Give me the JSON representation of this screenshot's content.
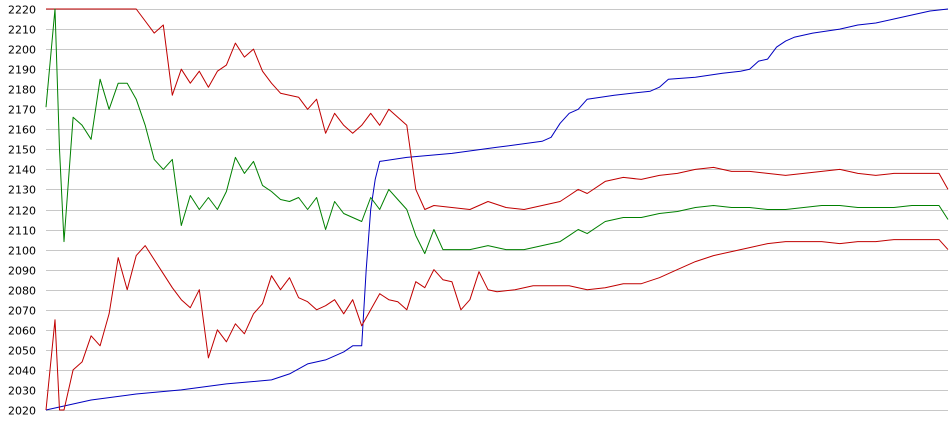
{
  "chart_data": {
    "type": "line",
    "ylim": [
      2020,
      2220
    ],
    "y_ticks": [
      2020,
      2030,
      2040,
      2050,
      2060,
      2070,
      2080,
      2090,
      2100,
      2110,
      2120,
      2130,
      2140,
      2150,
      2160,
      2170,
      2180,
      2190,
      2200,
      2210,
      2220
    ],
    "y_tick_labels": [
      "2020",
      "2030",
      "2040",
      "2050",
      "2060",
      "2070",
      "2080",
      "2090",
      "2100",
      "2110",
      "2120",
      "2130",
      "2140",
      "2150",
      "2160",
      "2170",
      "2180",
      "2190",
      "2200",
      "2210",
      "2220"
    ],
    "grid": true,
    "x_axis_labels": false,
    "xlim": [
      0,
      100
    ],
    "series": [
      {
        "color": "#0000c0",
        "points": [
          [
            0,
            2020
          ],
          [
            5,
            2025
          ],
          [
            10,
            2028
          ],
          [
            15,
            2030
          ],
          [
            20,
            2033
          ],
          [
            25,
            2035
          ],
          [
            27,
            2038
          ],
          [
            29,
            2043
          ],
          [
            31,
            2045
          ],
          [
            33,
            2049
          ],
          [
            34,
            2052
          ],
          [
            34.5,
            2052
          ],
          [
            35,
            2052
          ],
          [
            35.5,
            2090
          ],
          [
            36,
            2120
          ],
          [
            36.5,
            2135
          ],
          [
            37,
            2144
          ],
          [
            40,
            2146
          ],
          [
            45,
            2148
          ],
          [
            50,
            2151
          ],
          [
            55,
            2154
          ],
          [
            56,
            2156
          ],
          [
            57,
            2163
          ],
          [
            58,
            2168
          ],
          [
            59,
            2170
          ],
          [
            60,
            2175
          ],
          [
            63,
            2177
          ],
          [
            67,
            2179
          ],
          [
            68,
            2181
          ],
          [
            69,
            2185
          ],
          [
            72,
            2186
          ],
          [
            75,
            2188
          ],
          [
            77,
            2189
          ],
          [
            78,
            2190
          ],
          [
            79,
            2194
          ],
          [
            80,
            2195
          ],
          [
            81,
            2201
          ],
          [
            82,
            2204
          ],
          [
            83,
            2206
          ],
          [
            85,
            2208
          ],
          [
            88,
            2210
          ],
          [
            90,
            2212
          ],
          [
            92,
            2213
          ],
          [
            94,
            2215
          ],
          [
            96,
            2217
          ],
          [
            98,
            2219
          ],
          [
            100,
            2220
          ]
        ]
      },
      {
        "color": "#c00000",
        "points": [
          [
            0,
            2220
          ],
          [
            1,
            2220
          ],
          [
            3,
            2220
          ],
          [
            10,
            2220
          ],
          [
            11,
            2214
          ],
          [
            12,
            2208
          ],
          [
            13,
            2212
          ],
          [
            14,
            2177
          ],
          [
            15,
            2190
          ],
          [
            16,
            2183
          ],
          [
            17,
            2189
          ],
          [
            18,
            2181
          ],
          [
            19,
            2189
          ],
          [
            20,
            2192
          ],
          [
            21,
            2203
          ],
          [
            22,
            2196
          ],
          [
            23,
            2200
          ],
          [
            24,
            2189
          ],
          [
            25,
            2183
          ],
          [
            26,
            2178
          ],
          [
            27,
            2177
          ],
          [
            28,
            2176
          ],
          [
            29,
            2170
          ],
          [
            30,
            2175
          ],
          [
            31,
            2158
          ],
          [
            32,
            2168
          ],
          [
            33,
            2162
          ],
          [
            34,
            2158
          ],
          [
            35,
            2162
          ],
          [
            36,
            2168
          ],
          [
            37,
            2162
          ],
          [
            38,
            2170
          ],
          [
            39,
            2166
          ],
          [
            40,
            2162
          ],
          [
            41,
            2130
          ],
          [
            42,
            2120
          ],
          [
            43,
            2122
          ],
          [
            45,
            2121
          ],
          [
            47,
            2120
          ],
          [
            49,
            2124
          ],
          [
            51,
            2121
          ],
          [
            53,
            2120
          ],
          [
            55,
            2122
          ],
          [
            57,
            2124
          ],
          [
            58,
            2127
          ],
          [
            59,
            2130
          ],
          [
            60,
            2128
          ],
          [
            62,
            2134
          ],
          [
            64,
            2136
          ],
          [
            66,
            2135
          ],
          [
            68,
            2137
          ],
          [
            70,
            2138
          ],
          [
            72,
            2140
          ],
          [
            74,
            2141
          ],
          [
            76,
            2139
          ],
          [
            78,
            2139
          ],
          [
            80,
            2138
          ],
          [
            82,
            2137
          ],
          [
            84,
            2138
          ],
          [
            86,
            2139
          ],
          [
            88,
            2140
          ],
          [
            90,
            2138
          ],
          [
            92,
            2137
          ],
          [
            94,
            2138
          ],
          [
            96,
            2138
          ],
          [
            98,
            2138
          ],
          [
            99,
            2138
          ],
          [
            100,
            2130
          ]
        ]
      },
      {
        "color": "#008000",
        "points": [
          [
            0,
            2171
          ],
          [
            1,
            2220
          ],
          [
            1.5,
            2150
          ],
          [
            2,
            2104
          ],
          [
            3,
            2166
          ],
          [
            4,
            2162
          ],
          [
            5,
            2155
          ],
          [
            6,
            2185
          ],
          [
            7,
            2170
          ],
          [
            8,
            2183
          ],
          [
            9,
            2183
          ],
          [
            10,
            2175
          ],
          [
            11,
            2162
          ],
          [
            12,
            2145
          ],
          [
            13,
            2140
          ],
          [
            14,
            2145
          ],
          [
            15,
            2112
          ],
          [
            16,
            2127
          ],
          [
            17,
            2120
          ],
          [
            18,
            2126
          ],
          [
            19,
            2120
          ],
          [
            20,
            2129
          ],
          [
            21,
            2146
          ],
          [
            22,
            2138
          ],
          [
            23,
            2144
          ],
          [
            24,
            2132
          ],
          [
            25,
            2129
          ],
          [
            26,
            2125
          ],
          [
            27,
            2124
          ],
          [
            28,
            2126
          ],
          [
            29,
            2120
          ],
          [
            30,
            2126
          ],
          [
            31,
            2110
          ],
          [
            32,
            2124
          ],
          [
            33,
            2118
          ],
          [
            34,
            2116
          ],
          [
            35,
            2114
          ],
          [
            36,
            2126
          ],
          [
            37,
            2120
          ],
          [
            38,
            2130
          ],
          [
            39,
            2125
          ],
          [
            40,
            2120
          ],
          [
            41,
            2107
          ],
          [
            42,
            2098
          ],
          [
            43,
            2110
          ],
          [
            44,
            2100
          ],
          [
            45,
            2100
          ],
          [
            47,
            2100
          ],
          [
            49,
            2102
          ],
          [
            51,
            2100
          ],
          [
            53,
            2100
          ],
          [
            55,
            2102
          ],
          [
            57,
            2104
          ],
          [
            58,
            2107
          ],
          [
            59,
            2110
          ],
          [
            60,
            2108
          ],
          [
            62,
            2114
          ],
          [
            64,
            2116
          ],
          [
            66,
            2116
          ],
          [
            68,
            2118
          ],
          [
            70,
            2119
          ],
          [
            72,
            2121
          ],
          [
            74,
            2122
          ],
          [
            76,
            2121
          ],
          [
            78,
            2121
          ],
          [
            80,
            2120
          ],
          [
            82,
            2120
          ],
          [
            84,
            2121
          ],
          [
            86,
            2122
          ],
          [
            88,
            2122
          ],
          [
            90,
            2121
          ],
          [
            92,
            2121
          ],
          [
            94,
            2121
          ],
          [
            96,
            2122
          ],
          [
            98,
            2122
          ],
          [
            99,
            2122
          ],
          [
            100,
            2115
          ]
        ]
      },
      {
        "color": "#c00000",
        "points": [
          [
            0,
            2020
          ],
          [
            1,
            2065
          ],
          [
            1.5,
            2020
          ],
          [
            2,
            2020
          ],
          [
            3,
            2040
          ],
          [
            4,
            2044
          ],
          [
            5,
            2057
          ],
          [
            6,
            2052
          ],
          [
            7,
            2068
          ],
          [
            8,
            2096
          ],
          [
            9,
            2080
          ],
          [
            10,
            2097
          ],
          [
            11,
            2102
          ],
          [
            12,
            2095
          ],
          [
            13,
            2088
          ],
          [
            14,
            2081
          ],
          [
            15,
            2075
          ],
          [
            16,
            2071
          ],
          [
            17,
            2080
          ],
          [
            18,
            2046
          ],
          [
            19,
            2060
          ],
          [
            20,
            2054
          ],
          [
            21,
            2063
          ],
          [
            22,
            2058
          ],
          [
            23,
            2068
          ],
          [
            24,
            2073
          ],
          [
            25,
            2087
          ],
          [
            26,
            2080
          ],
          [
            27,
            2086
          ],
          [
            28,
            2076
          ],
          [
            29,
            2074
          ],
          [
            30,
            2070
          ],
          [
            31,
            2072
          ],
          [
            32,
            2075
          ],
          [
            33,
            2068
          ],
          [
            34,
            2075
          ],
          [
            35,
            2062
          ],
          [
            36,
            2070
          ],
          [
            37,
            2078
          ],
          [
            38,
            2075
          ],
          [
            39,
            2074
          ],
          [
            40,
            2070
          ],
          [
            41,
            2084
          ],
          [
            42,
            2081
          ],
          [
            43,
            2090
          ],
          [
            44,
            2085
          ],
          [
            45,
            2084
          ],
          [
            46,
            2070
          ],
          [
            47,
            2075
          ],
          [
            48,
            2089
          ],
          [
            49,
            2080
          ],
          [
            50,
            2079
          ],
          [
            52,
            2080
          ],
          [
            54,
            2082
          ],
          [
            56,
            2082
          ],
          [
            58,
            2082
          ],
          [
            60,
            2080
          ],
          [
            62,
            2081
          ],
          [
            64,
            2083
          ],
          [
            66,
            2083
          ],
          [
            68,
            2086
          ],
          [
            70,
            2090
          ],
          [
            72,
            2094
          ],
          [
            74,
            2097
          ],
          [
            76,
            2099
          ],
          [
            78,
            2101
          ],
          [
            80,
            2103
          ],
          [
            82,
            2104
          ],
          [
            84,
            2104
          ],
          [
            86,
            2104
          ],
          [
            88,
            2103
          ],
          [
            90,
            2104
          ],
          [
            92,
            2104
          ],
          [
            94,
            2105
          ],
          [
            96,
            2105
          ],
          [
            98,
            2105
          ],
          [
            99,
            2105
          ],
          [
            100,
            2100
          ]
        ]
      }
    ]
  }
}
